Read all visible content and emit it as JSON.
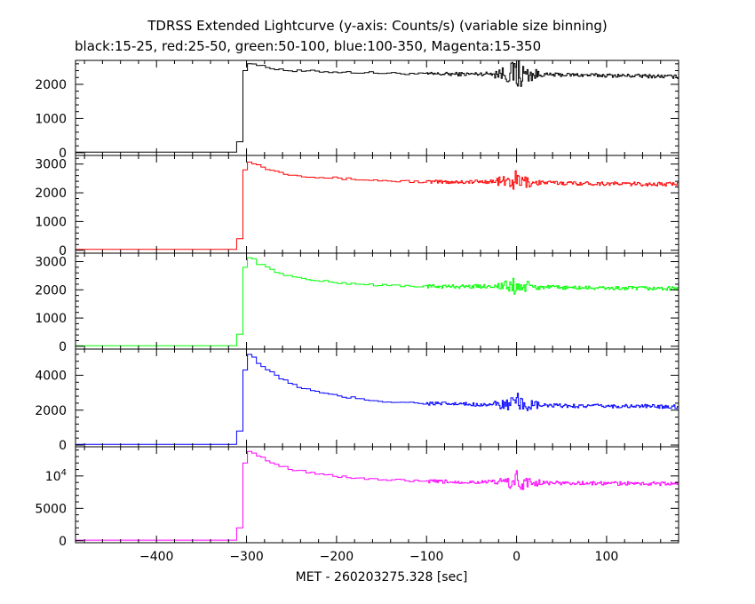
{
  "title": "TDRSS Extended Lightcurve (y-axis: Counts/s) (variable size binning)",
  "subtitle": "black:15-25, red:25-50, green:50-100, blue:100-350, Magenta:15-350",
  "xlabel": "MET - 260203275.328 [sec]",
  "chart_data": [
    {
      "type": "line",
      "name": "black:15-25",
      "color": "#000000",
      "xlim": [
        -490,
        180
      ],
      "ylim": [
        -80,
        2700
      ],
      "yticks": [
        0,
        1000,
        2000
      ],
      "ytick_labels": [
        "0",
        "1000",
        "2000"
      ],
      "x": [
        -490,
        -313,
        -311,
        -306,
        -304,
        -300,
        -295,
        -290,
        -280,
        -270,
        -260,
        -250,
        -225,
        -200,
        -150,
        -100,
        -50,
        -20,
        0,
        20,
        50,
        100,
        150,
        180
      ],
      "y": [
        20,
        20,
        320,
        320,
        2400,
        2640,
        2620,
        2560,
        2500,
        2460,
        2420,
        2390,
        2380,
        2360,
        2330,
        2300,
        2300,
        2320,
        2300,
        2280,
        2280,
        2260,
        2240,
        2220
      ]
    },
    {
      "type": "line",
      "name": "red:25-50",
      "color": "#ff0000",
      "xlim": [
        -490,
        180
      ],
      "ylim": [
        -100,
        3300
      ],
      "yticks": [
        0,
        1000,
        2000,
        3000
      ],
      "ytick_labels": [
        "0",
        "1000",
        "2000",
        "3000"
      ],
      "x": [
        -490,
        -313,
        -311,
        -306,
        -304,
        -300,
        -295,
        -290,
        -280,
        -270,
        -260,
        -250,
        -225,
        -200,
        -150,
        -100,
        -50,
        -20,
        0,
        20,
        50,
        100,
        150,
        180
      ],
      "y": [
        30,
        30,
        400,
        400,
        2800,
        3120,
        3060,
        2970,
        2850,
        2750,
        2680,
        2620,
        2560,
        2500,
        2420,
        2380,
        2380,
        2400,
        2380,
        2360,
        2340,
        2320,
        2300,
        2300
      ]
    },
    {
      "type": "line",
      "name": "green:50-100",
      "color": "#00ff00",
      "xlim": [
        -490,
        180
      ],
      "ylim": [
        -100,
        3300
      ],
      "yticks": [
        0,
        1000,
        2000,
        3000
      ],
      "ytick_labels": [
        "0",
        "1000",
        "2000",
        "3000"
      ],
      "x": [
        -490,
        -313,
        -311,
        -306,
        -304,
        -300,
        -295,
        -290,
        -280,
        -270,
        -260,
        -250,
        -225,
        -200,
        -150,
        -100,
        -50,
        -20,
        0,
        20,
        50,
        100,
        150,
        180
      ],
      "y": [
        20,
        20,
        430,
        430,
        2800,
        3200,
        3100,
        2950,
        2800,
        2650,
        2550,
        2450,
        2330,
        2250,
        2160,
        2120,
        2120,
        2130,
        2120,
        2100,
        2080,
        2060,
        2050,
        2050
      ]
    },
    {
      "type": "line",
      "name": "blue:100-350",
      "color": "#0000ff",
      "xlim": [
        -490,
        180
      ],
      "ylim": [
        -100,
        5500
      ],
      "yticks": [
        0,
        2000,
        4000
      ],
      "ytick_labels": [
        "0",
        "2000",
        "4000"
      ],
      "x": [
        -490,
        -313,
        -311,
        -306,
        -304,
        -300,
        -295,
        -290,
        -280,
        -270,
        -260,
        -250,
        -225,
        -200,
        -150,
        -100,
        -50,
        -20,
        0,
        20,
        50,
        100,
        150,
        180
      ],
      "y": [
        40,
        40,
        800,
        800,
        4300,
        5300,
        5100,
        4750,
        4350,
        4000,
        3700,
        3450,
        3050,
        2800,
        2500,
        2380,
        2330,
        2320,
        2300,
        2270,
        2250,
        2230,
        2220,
        2200
      ]
    },
    {
      "type": "line",
      "name": "Magenta:15-350",
      "color": "#ff00ff",
      "xlim": [
        -490,
        180
      ],
      "ylim": [
        -300,
        14500
      ],
      "yticks": [
        0,
        5000,
        10000
      ],
      "ytick_labels": [
        "0",
        "5000",
        "10⁴"
      ],
      "x": [
        -490,
        -313,
        -311,
        -306,
        -304,
        -300,
        -295,
        -290,
        -280,
        -270,
        -260,
        -250,
        -225,
        -200,
        -150,
        -100,
        -50,
        -20,
        0,
        20,
        50,
        100,
        150,
        180
      ],
      "y": [
        100,
        100,
        2000,
        2000,
        12000,
        14000,
        13700,
        13100,
        12500,
        11900,
        11400,
        11000,
        10400,
        9900,
        9400,
        9150,
        9050,
        9100,
        9000,
        8950,
        8900,
        8850,
        8820,
        8800
      ]
    }
  ],
  "xticks": [
    -400,
    -300,
    -200,
    -100,
    0,
    100
  ],
  "xtick_labels": [
    "−400",
    "−300",
    "−200",
    "−100",
    "0",
    "100"
  ]
}
